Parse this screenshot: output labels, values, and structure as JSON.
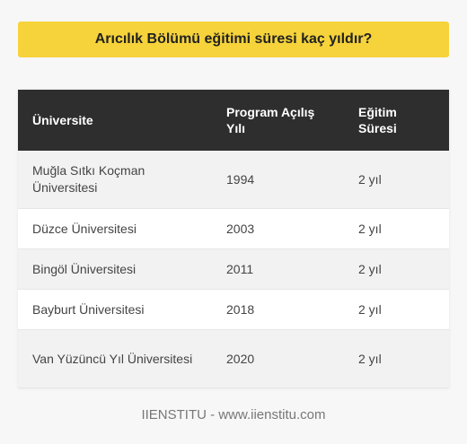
{
  "title": "Arıcılık Bölümü eğitimi süresi kaç yıldır?",
  "table": {
    "headers": [
      "Üniversite",
      "Program Açılış Yılı",
      "Eğitim Süresi"
    ],
    "rows": [
      [
        "Muğla Sıtkı Koçman Üniversitesi",
        "1994",
        "2 yıl"
      ],
      [
        "Düzce Üniversitesi",
        "2003",
        "2 yıl"
      ],
      [
        "Bingöl Üniversitesi",
        "2011",
        "2 yıl"
      ],
      [
        "Bayburt Üniversitesi",
        "2018",
        "2 yıl"
      ],
      [
        "Van Yüzüncü Yıl Üniversitesi",
        "2020",
        "2 yıl"
      ]
    ]
  },
  "footer": "IIENSTITU - www.iienstitu.com"
}
